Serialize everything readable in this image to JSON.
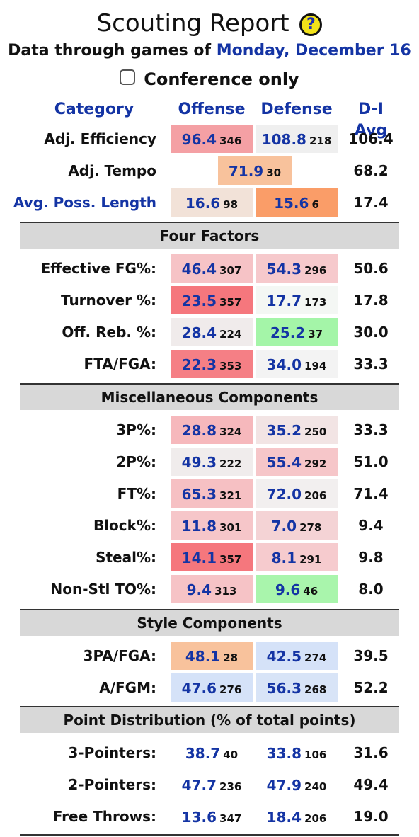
{
  "header": {
    "title": "Scouting Report",
    "help_icon": "?",
    "subtitle_prefix": "Data through games of",
    "subtitle_date": "Monday, December 16",
    "conference_label": "Conference only"
  },
  "columns": {
    "category": "Category",
    "offense": "Offense",
    "defense": "Defense",
    "avg": "D-I Avg"
  },
  "top_rows": [
    {
      "label": "Adj. Efficiency",
      "off_val": "96.4",
      "off_rank": "346",
      "off_color": "#f4a0a4",
      "def_val": "108.8",
      "def_rank": "218",
      "def_color": "#efefef",
      "avg": "106.4"
    },
    {
      "label": "Adj. Tempo",
      "tempo_val": "71.9",
      "tempo_rank": "30",
      "tempo_color": "#f8c29c",
      "avg": "68.2"
    },
    {
      "label": "Avg. Poss. Length",
      "off_val": "16.6",
      "off_rank": "98",
      "off_color": "#f2e2d8",
      "def_val": "15.6",
      "def_rank": "6",
      "def_color": "#fa9d68",
      "avg": "17.4"
    }
  ],
  "sections": [
    {
      "title": "Four Factors",
      "rows": [
        {
          "label": "Effective FG%:",
          "off_val": "46.4",
          "off_rank": "307",
          "off_color": "#f6c3c6",
          "def_val": "54.3",
          "def_rank": "296",
          "def_color": "#f6c9cc",
          "avg": "50.6"
        },
        {
          "label": "Turnover %:",
          "off_val": "23.5",
          "off_rank": "357",
          "off_color": "#f5777d",
          "def_val": "17.7",
          "def_rank": "173",
          "def_color": "#f4f7f4",
          "avg": "17.8"
        },
        {
          "label": "Off. Reb. %:",
          "off_val": "28.4",
          "off_rank": "224",
          "off_color": "#f0ebeb",
          "def_val": "25.2",
          "def_rank": "37",
          "def_color": "#a4f5a8",
          "avg": "30.0"
        },
        {
          "label": "FTA/FGA:",
          "off_val": "22.3",
          "off_rank": "353",
          "off_color": "#f57f85",
          "def_val": "34.0",
          "def_rank": "194",
          "def_color": "#f3f3f3",
          "avg": "33.3"
        }
      ]
    },
    {
      "title": "Miscellaneous Components",
      "rows": [
        {
          "label": "3P%:",
          "off_val": "28.8",
          "off_rank": "324",
          "off_color": "#f6b8bc",
          "def_val": "35.2",
          "def_rank": "250",
          "def_color": "#f2e4e4",
          "avg": "33.3"
        },
        {
          "label": "2P%:",
          "off_val": "49.3",
          "off_rank": "222",
          "off_color": "#f0ecec",
          "def_val": "55.4",
          "def_rank": "292",
          "def_color": "#f6c6c9",
          "avg": "51.0"
        },
        {
          "label": "FT%:",
          "off_val": "65.3",
          "off_rank": "321",
          "off_color": "#f6c0c3",
          "def_val": "72.0",
          "def_rank": "206",
          "def_color": "#f2efef",
          "avg": "71.4"
        },
        {
          "label": "Block%:",
          "off_val": "11.8",
          "off_rank": "301",
          "off_color": "#f6c6c9",
          "def_val": "7.0",
          "def_rank": "278",
          "def_color": "#f4d3d5",
          "avg": "9.4"
        },
        {
          "label": "Steal%:",
          "off_val": "14.1",
          "off_rank": "357",
          "off_color": "#f5777d",
          "def_val": "8.1",
          "def_rank": "291",
          "def_color": "#f6cbce",
          "avg": "9.8"
        },
        {
          "label": "Non-Stl TO%:",
          "off_val": "9.4",
          "off_rank": "313",
          "off_color": "#f6c3c6",
          "def_val": "9.6",
          "def_rank": "46",
          "def_color": "#a9f5ac",
          "avg": "8.0"
        }
      ]
    },
    {
      "title": "Style Components",
      "rows": [
        {
          "label": "3PA/FGA:",
          "off_val": "48.1",
          "off_rank": "28",
          "off_color": "#f8c29c",
          "def_val": "42.5",
          "def_rank": "274",
          "def_color": "#d5e2f8",
          "avg": "39.5"
        },
        {
          "label": "A/FGM:",
          "off_val": "47.6",
          "off_rank": "276",
          "off_color": "#d5e2f8",
          "def_val": "56.3",
          "def_rank": "268",
          "def_color": "#d8e4f7",
          "avg": "52.2"
        }
      ]
    },
    {
      "title": "Point Distribution (% of total points)",
      "rows": [
        {
          "label": "3-Pointers:",
          "off_val": "38.7",
          "off_rank": "40",
          "off_color": "#ffffff",
          "def_val": "33.8",
          "def_rank": "106",
          "def_color": "#ffffff",
          "avg": "31.6"
        },
        {
          "label": "2-Pointers:",
          "off_val": "47.7",
          "off_rank": "236",
          "off_color": "#ffffff",
          "def_val": "47.9",
          "def_rank": "240",
          "def_color": "#ffffff",
          "avg": "49.4"
        },
        {
          "label": "Free Throws:",
          "off_val": "13.6",
          "off_rank": "347",
          "off_color": "#ffffff",
          "def_val": "18.4",
          "def_rank": "206",
          "def_color": "#ffffff",
          "avg": "19.0"
        }
      ]
    }
  ]
}
